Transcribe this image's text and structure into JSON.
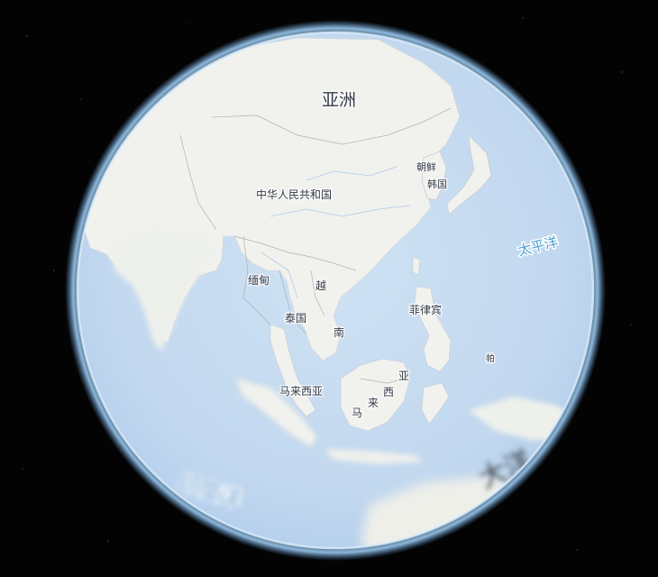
{
  "map": {
    "labels": {
      "asia": "亚洲",
      "china": "中华人民共和国",
      "korea_north": "朝鲜",
      "korea_south": "韩国",
      "myanmar": "缅甸",
      "vietnam_part1": "越",
      "vietnam_part2": "南",
      "thailand": "泰国",
      "philippines": "菲律宾",
      "malaysia_west": "马来西亚",
      "malaysia_east_1": "马",
      "malaysia_east_2": "来",
      "malaysia_east_3": "西",
      "malaysia_east_4": "亚",
      "palau": "帕",
      "pacific": "太平洋",
      "indian_ocean": "印度洋",
      "ocean_fragment": "大洋"
    },
    "colors": {
      "background": "#030303",
      "ocean": "#c6dbf0",
      "land": "#f1f2ee",
      "atmosphere": "#8fc3ee",
      "ocean_label": "#4a9ed2"
    }
  }
}
